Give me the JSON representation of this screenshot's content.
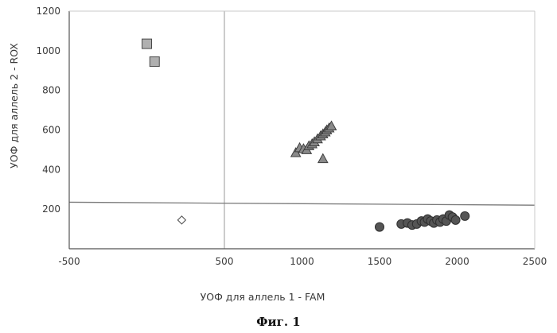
{
  "chart_data": {
    "type": "scatter",
    "title": "",
    "xlabel": "УОФ для аллель 1 - FAM",
    "ylabel": "УОФ для аллель 2 - ROX",
    "xlim": [
      -500,
      2500
    ],
    "ylim": [
      0,
      1200
    ],
    "xticks": [
      "-500",
      "500",
      "1000",
      "1500",
      "2000",
      "2500"
    ],
    "yticks": [
      "200",
      "400",
      "600",
      "800",
      "1000",
      "1200"
    ],
    "grid": false,
    "threshold_lines": {
      "vertical_x": 500,
      "horizontal_y_left": 235,
      "horizontal_y_right": 220
    },
    "caption": "Фиг. 1",
    "colors": {
      "squares": "#b0b0b0",
      "triangles": "#8a8a8a",
      "circles": "#555555",
      "diamond": "#ffffff",
      "axis": "#555555",
      "threshold": "#7a7a7a"
    },
    "series": [
      {
        "marker": "square",
        "points": [
          [
            0,
            1035
          ],
          [
            50,
            945
          ]
        ]
      },
      {
        "marker": "triangle",
        "points": [
          [
            960,
            485
          ],
          [
            985,
            510
          ],
          [
            1010,
            505
          ],
          [
            1030,
            500
          ],
          [
            1045,
            520
          ],
          [
            1065,
            530
          ],
          [
            1080,
            540
          ],
          [
            1100,
            555
          ],
          [
            1120,
            570
          ],
          [
            1135,
            580
          ],
          [
            1150,
            590
          ],
          [
            1160,
            600
          ],
          [
            1175,
            610
          ],
          [
            1190,
            620
          ],
          [
            1135,
            455
          ]
        ]
      },
      {
        "marker": "circle",
        "points": [
          [
            1500,
            110
          ],
          [
            1640,
            125
          ],
          [
            1680,
            130
          ],
          [
            1710,
            120
          ],
          [
            1740,
            125
          ],
          [
            1770,
            140
          ],
          [
            1790,
            135
          ],
          [
            1810,
            150
          ],
          [
            1830,
            140
          ],
          [
            1850,
            130
          ],
          [
            1870,
            145
          ],
          [
            1890,
            135
          ],
          [
            1910,
            150
          ],
          [
            1930,
            140
          ],
          [
            1950,
            170
          ],
          [
            1970,
            160
          ],
          [
            1990,
            145
          ],
          [
            2050,
            165
          ]
        ]
      },
      {
        "marker": "diamond",
        "points": [
          [
            225,
            145
          ]
        ]
      }
    ]
  }
}
